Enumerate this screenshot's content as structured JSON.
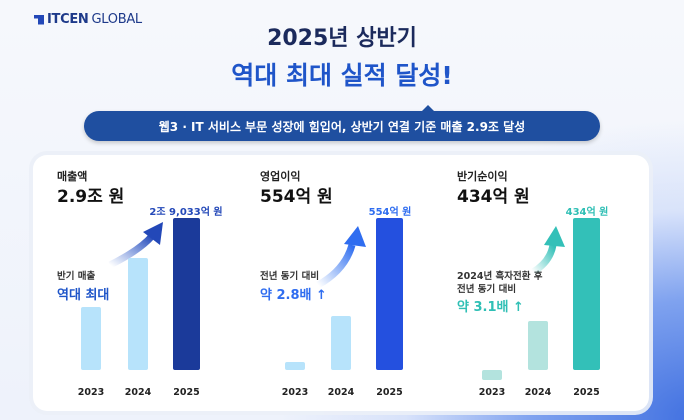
{
  "logo": {
    "brand": "ITCEN",
    "suffix": "GLOBAL"
  },
  "title_line1": "2025년 상반기",
  "title_line2": "역대 최대 실적 달성!",
  "subtitle": "웹3 · IT 서비스 부문 성장에 힘입어, 상반기 연결 기준 매출 2.9조 달성",
  "colors": {
    "rev_light": "#b7e3fb",
    "rev_main": "#1b3a9a",
    "op_light": "#b7e3fb",
    "op_main": "#2450df",
    "net_light": "#b3e3de",
    "net_main": "#33c0b8"
  },
  "chart_data": [
    {
      "type": "bar",
      "title": "매출액",
      "headline": "2.9조 원",
      "unit": "억 원",
      "categories": [
        "2023",
        "2024",
        "2025"
      ],
      "values": [
        12000,
        21400,
        29033
      ],
      "value_label": "2조 9,033억 원",
      "note": "반기 매출",
      "highlight": "역대 최대"
    },
    {
      "type": "bar",
      "title": "영업이익",
      "headline": "554억 원",
      "unit": "억 원",
      "categories": [
        "2023",
        "2024",
        "2025"
      ],
      "values": [
        30,
        198,
        554
      ],
      "value_label": "554억 원",
      "note": "전년 동기 대비",
      "highlight": "약 2.8배 ↑"
    },
    {
      "type": "bar",
      "title": "반기순이익",
      "headline": "434억 원",
      "unit": "억 원",
      "categories": [
        "2023",
        "2024",
        "2025"
      ],
      "values": [
        -29,
        140,
        434
      ],
      "value_label": "434억 원",
      "note": "2024년 흑자전환 후",
      "note2": "전년 동기 대비",
      "highlight": "약 3.1배 ↑"
    }
  ]
}
